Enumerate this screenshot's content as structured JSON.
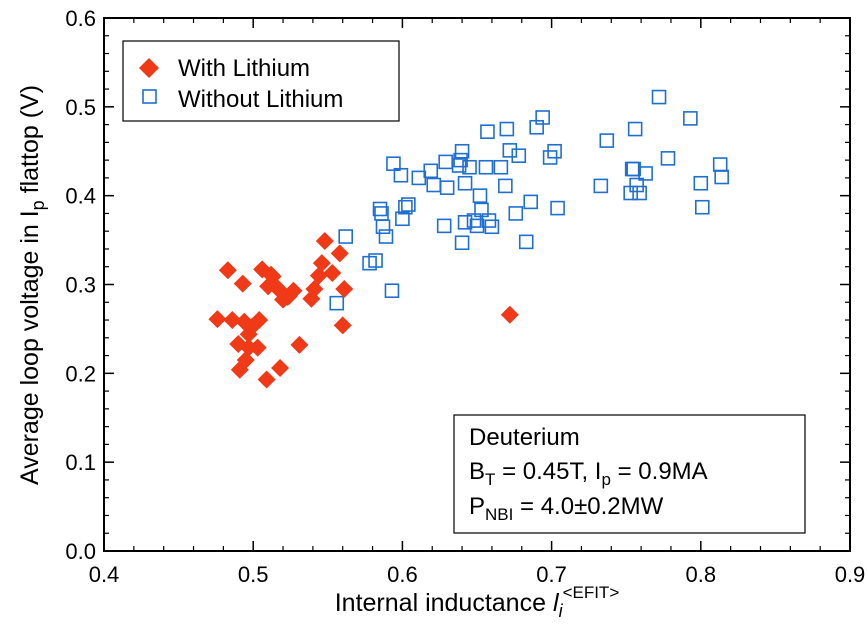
{
  "chart_data": {
    "type": "scatter",
    "xlabel": "Internal inductance",
    "xlabel_symbol": "l",
    "xlabel_symbol_sub": "i",
    "xlabel_superscript": "<EFIT>",
    "ylabel": "Average loop voltage in I",
    "ylabel_sub": "p",
    "ylabel_tail": " flattop (V)",
    "xlim": [
      0.4,
      0.9
    ],
    "ylim": [
      0.0,
      0.6
    ],
    "x_ticks": [
      "0.4",
      "0.5",
      "0.6",
      "0.7",
      "0.8",
      "0.9"
    ],
    "y_ticks": [
      "0.0",
      "0.1",
      "0.2",
      "0.3",
      "0.4",
      "0.5",
      "0.6"
    ],
    "legend_position": "top-left",
    "series": [
      {
        "name": "With Lithium",
        "marker": "filled-diamond",
        "color": "#f03a17",
        "points": [
          [
            0.476,
            0.261
          ],
          [
            0.483,
            0.316
          ],
          [
            0.486,
            0.26
          ],
          [
            0.49,
            0.233
          ],
          [
            0.491,
            0.204
          ],
          [
            0.493,
            0.301
          ],
          [
            0.494,
            0.258
          ],
          [
            0.495,
            0.215
          ],
          [
            0.497,
            0.244
          ],
          [
            0.497,
            0.229
          ],
          [
            0.499,
            0.252
          ],
          [
            0.503,
            0.229
          ],
          [
            0.504,
            0.26
          ],
          [
            0.506,
            0.317
          ],
          [
            0.509,
            0.193
          ],
          [
            0.51,
            0.298
          ],
          [
            0.512,
            0.311
          ],
          [
            0.513,
            0.309
          ],
          [
            0.515,
            0.298
          ],
          [
            0.518,
            0.293
          ],
          [
            0.518,
            0.206
          ],
          [
            0.52,
            0.283
          ],
          [
            0.523,
            0.286
          ],
          [
            0.524,
            0.287
          ],
          [
            0.527,
            0.293
          ],
          [
            0.531,
            0.232
          ],
          [
            0.539,
            0.284
          ],
          [
            0.541,
            0.295
          ],
          [
            0.544,
            0.31
          ],
          [
            0.546,
            0.324
          ],
          [
            0.548,
            0.349
          ],
          [
            0.553,
            0.313
          ],
          [
            0.558,
            0.335
          ],
          [
            0.56,
            0.254
          ],
          [
            0.561,
            0.295
          ],
          [
            0.672,
            0.266
          ]
        ]
      },
      {
        "name": "Without Lithium",
        "marker": "open-square",
        "color": "#1f6fd1",
        "points": [
          [
            0.556,
            0.279
          ],
          [
            0.562,
            0.354
          ],
          [
            0.578,
            0.324
          ],
          [
            0.582,
            0.327
          ],
          [
            0.585,
            0.385
          ],
          [
            0.586,
            0.38
          ],
          [
            0.587,
            0.365
          ],
          [
            0.589,
            0.354
          ],
          [
            0.593,
            0.293
          ],
          [
            0.594,
            0.436
          ],
          [
            0.599,
            0.423
          ],
          [
            0.6,
            0.374
          ],
          [
            0.602,
            0.387
          ],
          [
            0.604,
            0.39
          ],
          [
            0.611,
            0.42
          ],
          [
            0.619,
            0.428
          ],
          [
            0.621,
            0.412
          ],
          [
            0.628,
            0.366
          ],
          [
            0.629,
            0.438
          ],
          [
            0.63,
            0.409
          ],
          [
            0.638,
            0.434
          ],
          [
            0.639,
            0.44
          ],
          [
            0.64,
            0.45
          ],
          [
            0.64,
            0.347
          ],
          [
            0.642,
            0.414
          ],
          [
            0.642,
            0.37
          ],
          [
            0.645,
            0.432
          ],
          [
            0.648,
            0.372
          ],
          [
            0.65,
            0.366
          ],
          [
            0.652,
            0.4
          ],
          [
            0.653,
            0.384
          ],
          [
            0.656,
            0.432
          ],
          [
            0.657,
            0.472
          ],
          [
            0.658,
            0.372
          ],
          [
            0.66,
            0.365
          ],
          [
            0.666,
            0.432
          ],
          [
            0.669,
            0.411
          ],
          [
            0.67,
            0.475
          ],
          [
            0.672,
            0.451
          ],
          [
            0.676,
            0.38
          ],
          [
            0.678,
            0.445
          ],
          [
            0.683,
            0.348
          ],
          [
            0.686,
            0.393
          ],
          [
            0.69,
            0.477
          ],
          [
            0.694,
            0.488
          ],
          [
            0.699,
            0.443
          ],
          [
            0.702,
            0.45
          ],
          [
            0.704,
            0.386
          ],
          [
            0.733,
            0.411
          ],
          [
            0.737,
            0.462
          ],
          [
            0.753,
            0.403
          ],
          [
            0.754,
            0.43
          ],
          [
            0.755,
            0.43
          ],
          [
            0.756,
            0.475
          ],
          [
            0.757,
            0.412
          ],
          [
            0.759,
            0.403
          ],
          [
            0.763,
            0.425
          ],
          [
            0.772,
            0.511
          ],
          [
            0.778,
            0.442
          ],
          [
            0.793,
            0.487
          ],
          [
            0.8,
            0.414
          ],
          [
            0.801,
            0.387
          ],
          [
            0.813,
            0.435
          ],
          [
            0.814,
            0.421
          ]
        ]
      }
    ],
    "annotation": {
      "position": "bottom-right",
      "line1": "Deuterium",
      "line2": {
        "a": "B",
        "a_sub": "T",
        "b": " = 0.45T, I",
        "b_sub": "p",
        "c": " = 0.9MA"
      },
      "line3": {
        "a": "P",
        "a_sub": "NBI",
        "b": " = 4.0±0.2MW"
      }
    }
  }
}
